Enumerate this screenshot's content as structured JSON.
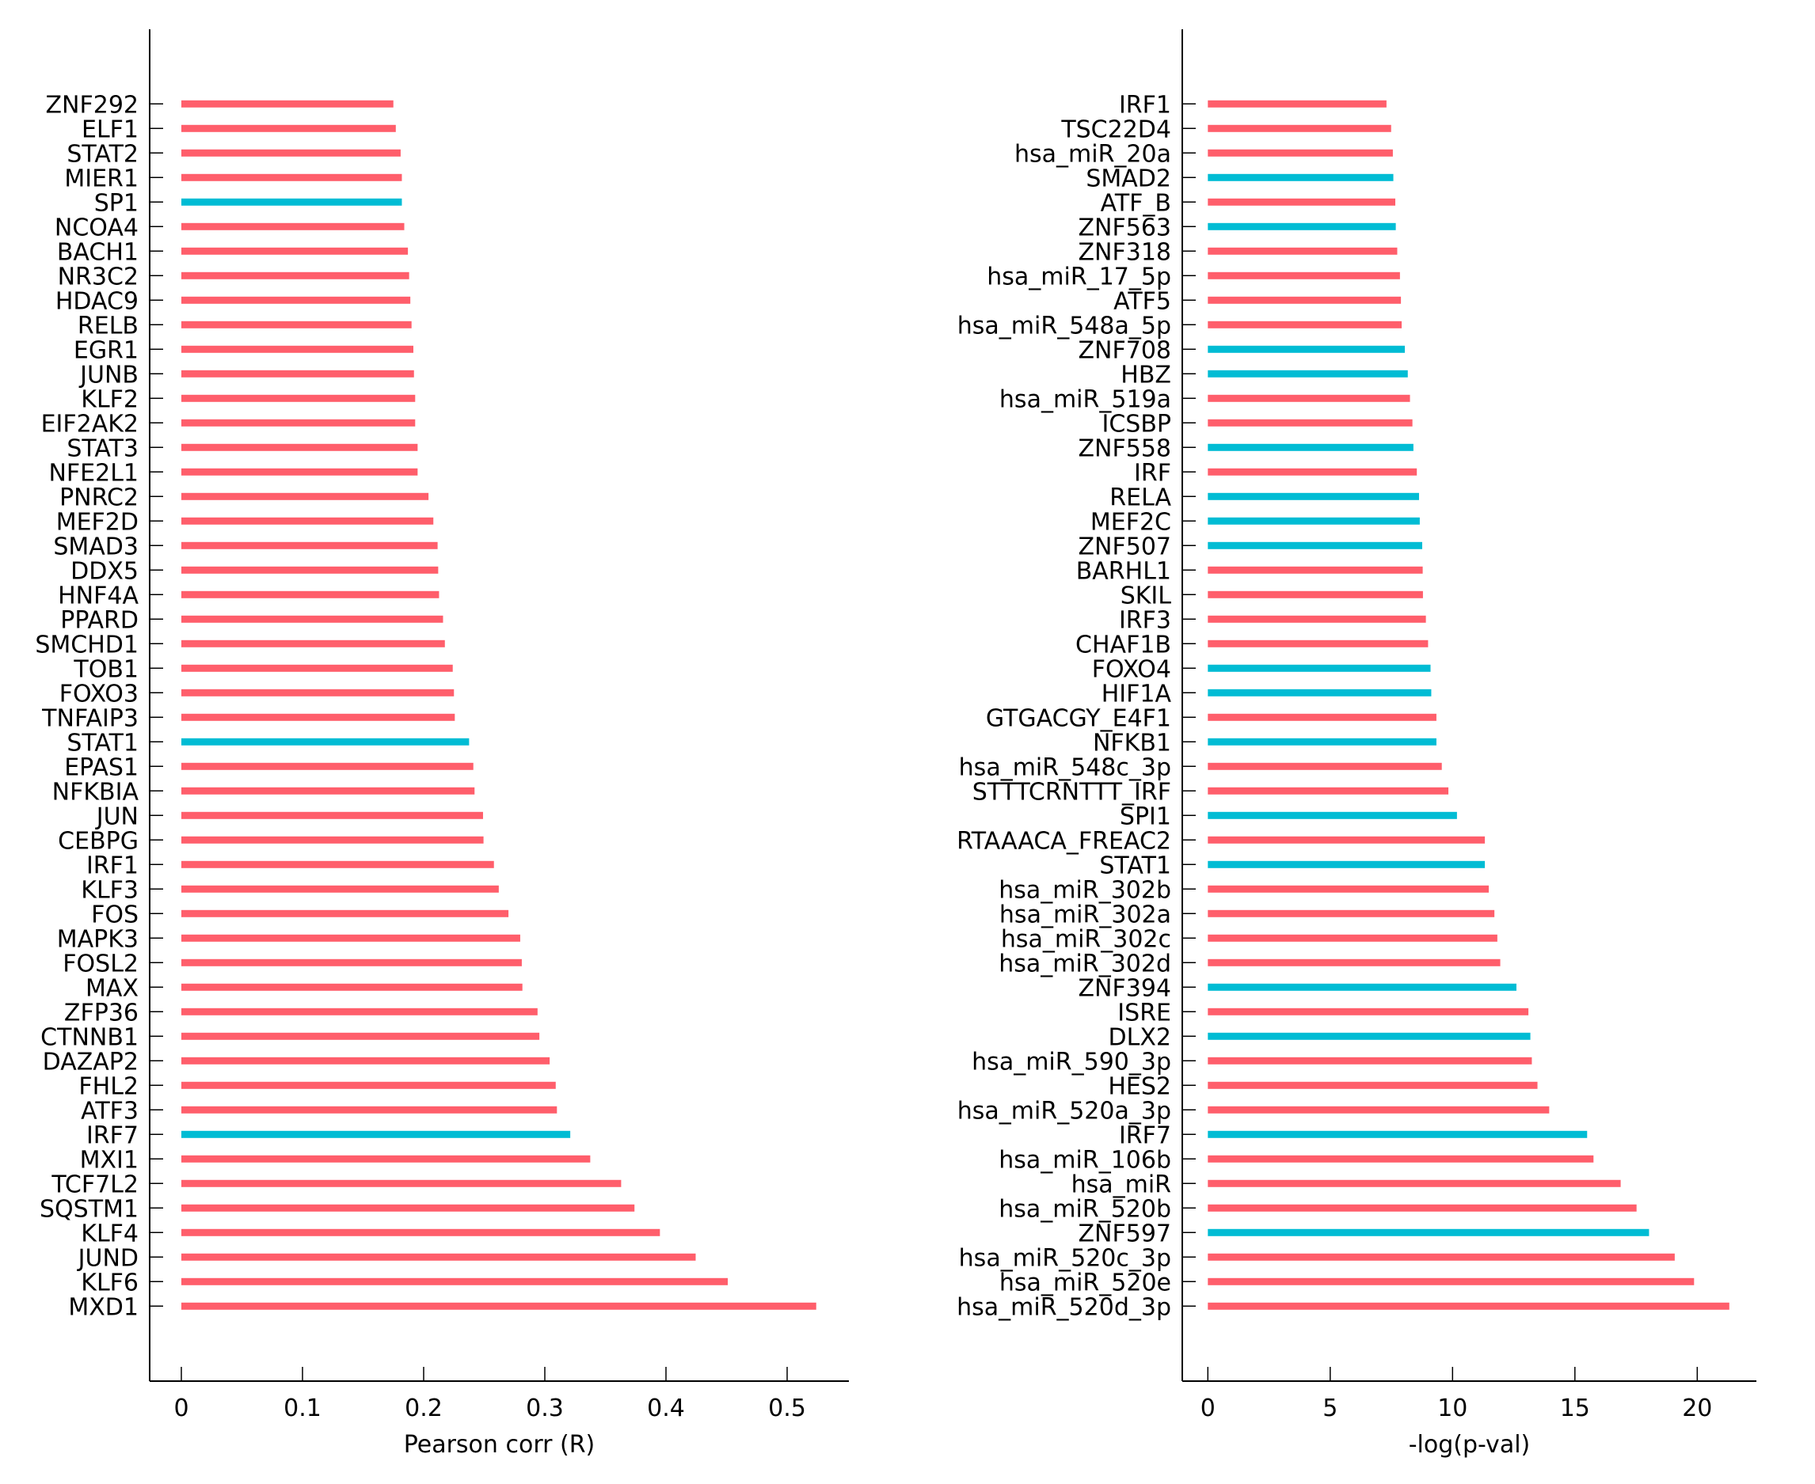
{
  "colors": {
    "up": "#FF5E6B",
    "down": "#00BCD4",
    "axis": "#000000"
  },
  "chart_data": [
    {
      "type": "bar",
      "orientation": "horizontal",
      "title": "",
      "xlabel": "Pearson corr (R)",
      "ylabel": "",
      "xlim": [
        -0.0125,
        0.55
      ],
      "xticks": [
        0,
        0.1,
        0.2,
        0.3,
        0.4,
        0.5
      ],
      "xtick_labels": [
        "0",
        "0.1",
        "0.2",
        "0.3",
        "0.4",
        "0.5"
      ],
      "grid": false,
      "legend": "none",
      "categories": [
        "ZNF292",
        "ELF1",
        "STAT2",
        "MIER1",
        "SP1",
        "NCOA4",
        "BACH1",
        "NR3C2",
        "HDAC9",
        "RELB",
        "EGR1",
        "JUNB",
        "KLF2",
        "EIF2AK2",
        "STAT3",
        "NFE2L1",
        "PNRC2",
        "MEF2D",
        "SMAD3",
        "DDX5",
        "HNF4A",
        "PPARD",
        "SMCHD1",
        "TOB1",
        "FOXO3",
        "TNFAIP3",
        "STAT1",
        "EPAS1",
        "NFKBIA",
        "JUN",
        "CEBPG",
        "IRF1",
        "KLF3",
        "FOS",
        "MAPK3",
        "FOSL2",
        "MAX",
        "ZFP36",
        "CTNNB1",
        "DAZAP2",
        "FHL2",
        "ATF3",
        "IRF7",
        "MXI1",
        "TCF7L2",
        "SQSTM1",
        "KLF4",
        "JUND",
        "KLF6",
        "MXD1"
      ],
      "values": [
        0.175,
        0.177,
        0.181,
        0.182,
        0.182,
        0.184,
        0.187,
        0.188,
        0.189,
        0.19,
        0.1915,
        0.192,
        0.193,
        0.193,
        0.195,
        0.195,
        0.204,
        0.208,
        0.2115,
        0.212,
        0.2127,
        0.216,
        0.2175,
        0.224,
        0.225,
        0.2257,
        0.2375,
        0.241,
        0.242,
        0.249,
        0.2494,
        0.258,
        0.262,
        0.27,
        0.2797,
        0.281,
        0.2815,
        0.294,
        0.2955,
        0.304,
        0.309,
        0.31,
        0.321,
        0.3375,
        0.363,
        0.374,
        0.395,
        0.4245,
        0.451,
        0.524
      ],
      "color_groups": [
        "up",
        "up",
        "up",
        "up",
        "down",
        "up",
        "up",
        "up",
        "up",
        "up",
        "up",
        "up",
        "up",
        "up",
        "up",
        "up",
        "up",
        "up",
        "up",
        "up",
        "up",
        "up",
        "up",
        "up",
        "up",
        "up",
        "down",
        "up",
        "up",
        "up",
        "up",
        "up",
        "up",
        "up",
        "up",
        "up",
        "up",
        "up",
        "up",
        "up",
        "up",
        "up",
        "down",
        "up",
        "up",
        "up",
        "up",
        "up",
        "up",
        "up"
      ]
    },
    {
      "type": "bar",
      "orientation": "horizontal",
      "title": "",
      "xlabel": "-log(p-val)",
      "ylabel": "",
      "xlim": [
        -1.03,
        22.4
      ],
      "xticks": [
        0,
        5,
        10,
        15,
        20
      ],
      "xtick_labels": [
        "0",
        "5",
        "10",
        "15",
        "20"
      ],
      "grid": false,
      "legend": "none",
      "categories": [
        "IRF1",
        "TSC22D4",
        "hsa_miR_20a",
        "SMAD2",
        "ATF_B",
        "ZNF563",
        "ZNF318",
        "hsa_miR_17_5p",
        "ATF5",
        "hsa_miR_548a_5p",
        "ZNF708",
        "HBZ",
        "hsa_miR_519a",
        "ICSBP",
        "ZNF558",
        "IRF",
        "RELA",
        "MEF2C",
        "ZNF507",
        "BARHL1",
        "SKIL",
        "IRF3",
        "CHAF1B",
        "FOXO4",
        "HIF1A",
        "GTGACGY_E4F1",
        "NFKB1",
        "hsa_miR_548c_3p",
        "STTTCRNTTT_IRF",
        "SPI1",
        "RTAAACA_FREAC2",
        "STAT1",
        "hsa_miR_302b",
        "hsa_miR_302a",
        "hsa_miR_302c",
        "hsa_miR_302d",
        "ZNF394",
        "ISRE",
        "DLX2",
        "hsa_miR_590_3p",
        "HES2",
        "hsa_miR_520a_3p",
        "IRF7",
        "hsa_miR_106b",
        "hsa_miR",
        "hsa_miR_520b",
        "ZNF597",
        "hsa_miR_520c_3p",
        "hsa_miR_520e",
        "hsa_miR_520d_3p"
      ],
      "values": [
        7.3,
        7.49,
        7.56,
        7.58,
        7.66,
        7.68,
        7.74,
        7.85,
        7.89,
        7.92,
        8.05,
        8.17,
        8.26,
        8.36,
        8.4,
        8.54,
        8.63,
        8.66,
        8.76,
        8.78,
        8.79,
        8.91,
        9.0,
        9.1,
        9.13,
        9.34,
        9.34,
        9.56,
        9.83,
        10.18,
        11.32,
        11.32,
        11.48,
        11.71,
        11.83,
        11.95,
        12.61,
        13.1,
        13.18,
        13.24,
        13.47,
        13.95,
        15.5,
        15.76,
        16.87,
        17.52,
        18.03,
        19.08,
        19.87,
        21.31
      ],
      "color_groups": [
        "up",
        "up",
        "up",
        "down",
        "up",
        "down",
        "up",
        "up",
        "up",
        "up",
        "down",
        "down",
        "up",
        "up",
        "down",
        "up",
        "down",
        "down",
        "down",
        "up",
        "up",
        "up",
        "up",
        "down",
        "down",
        "up",
        "down",
        "up",
        "up",
        "down",
        "up",
        "down",
        "up",
        "up",
        "up",
        "up",
        "down",
        "up",
        "down",
        "up",
        "up",
        "up",
        "down",
        "up",
        "up",
        "up",
        "down",
        "up",
        "up",
        "up"
      ]
    }
  ]
}
